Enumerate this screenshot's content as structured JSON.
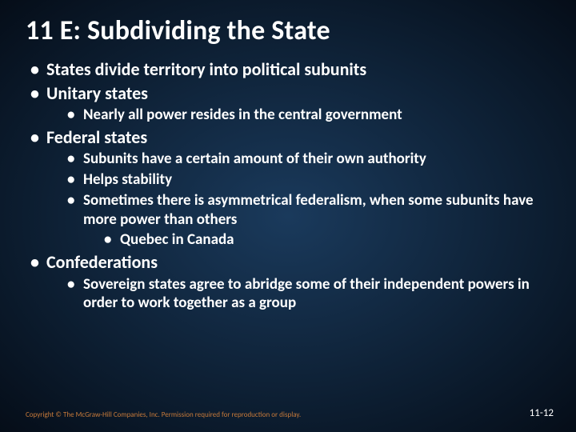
{
  "colors": {
    "background_center": "#1a3a5c",
    "background_edge": "#050d18",
    "text": "#ffffff",
    "copyright": "#c77a3a"
  },
  "typography": {
    "title_fontsize": 34,
    "lvl1_fontsize": 22,
    "lvl2_fontsize": 19,
    "lvl3_fontsize": 19,
    "footer_left_fontsize": 9,
    "footer_right_fontsize": 13,
    "font_family": "Calibri",
    "font_weight": "bold"
  },
  "title": "11 E: Subdividing the State",
  "bullets": {
    "b1": "States divide territory into political subunits",
    "b2": "Unitary states",
    "b2_1": "Nearly all power resides in the central government",
    "b3": "Federal states",
    "b3_1": "Subunits have a certain amount of their own authority",
    "b3_2": "Helps stability",
    "b3_3": "Sometimes there is asymmetrical federalism, when some subunits have more power than others",
    "b3_3_1": "Quebec in Canada",
    "b4": "Confederations",
    "b4_1": "Sovereign states agree to abridge some of their independent powers in order to work together as a group"
  },
  "footer": {
    "copyright": "Copyright © The McGraw-Hill Companies, Inc. Permission required for reproduction or display.",
    "page": "11-12"
  }
}
